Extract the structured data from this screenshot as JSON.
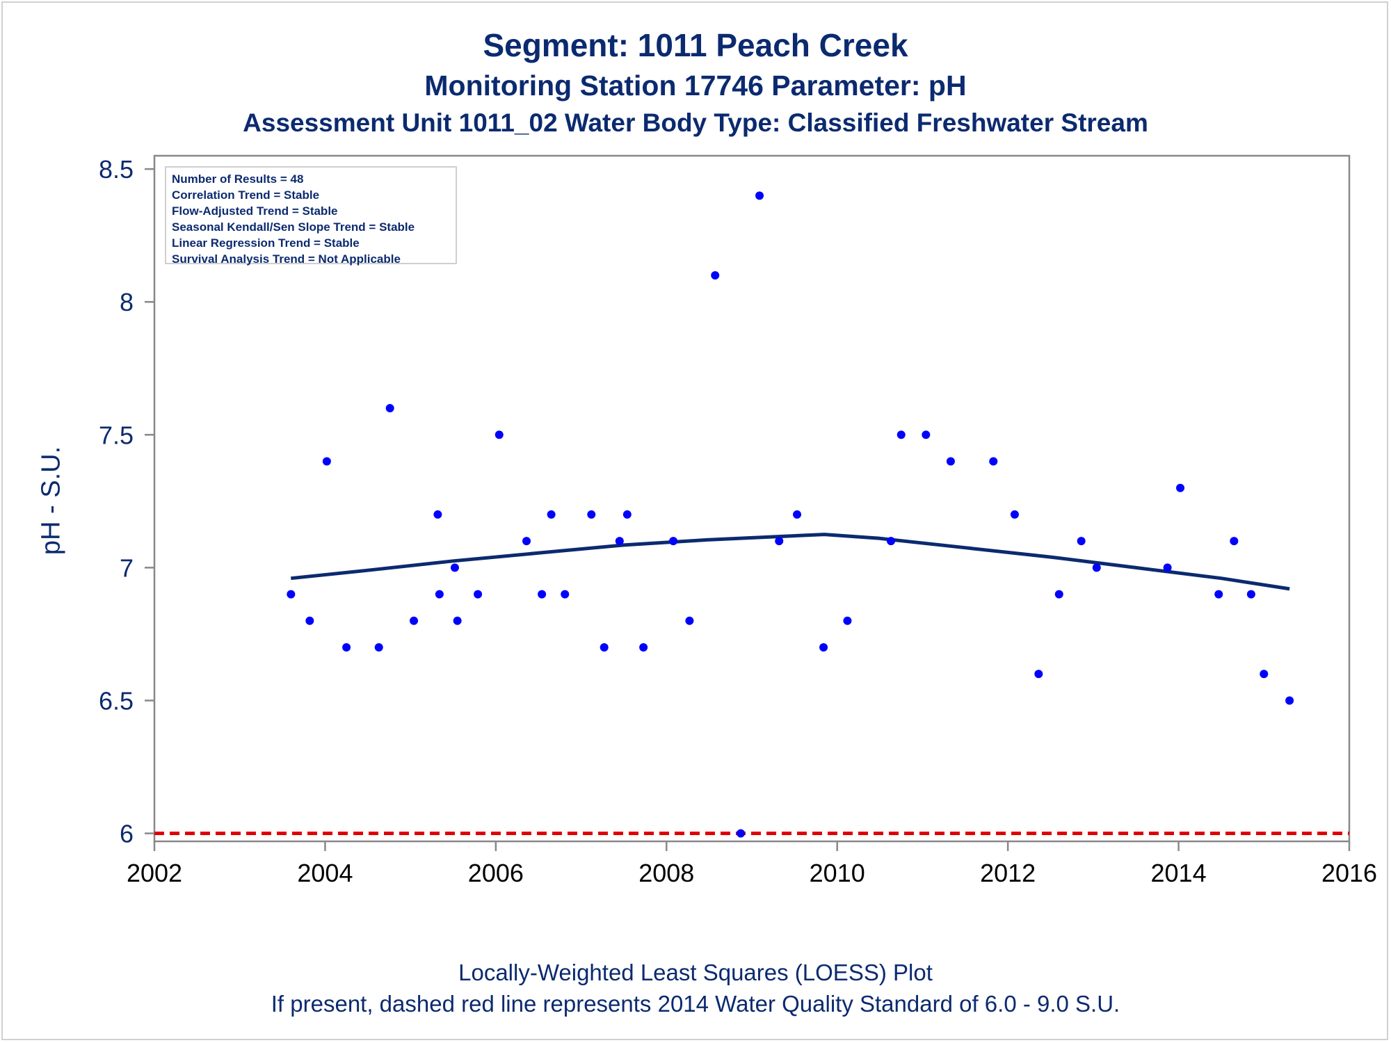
{
  "titles": {
    "line1": "Segment: 1011  Peach Creek",
    "line2": "Monitoring Station 17746 Parameter: pH",
    "line3": "Assessment Unit 1011_02   Water Body Type: Classified Freshwater Stream"
  },
  "footer": {
    "line1": "Locally-Weighted Least Squares (LOESS) Plot",
    "line2": "If present, dashed red line represents 2014 Water Quality Standard of 6.0 - 9.0 S.U."
  },
  "stats_box": [
    "Number of Results = 48",
    "Correlation Trend = Stable",
    "Flow-Adjusted Trend = Stable",
    "Seasonal Kendall/Sen Slope Trend = Stable",
    "Linear Regression Trend = Stable",
    "Survival Analysis Trend = Not Applicable"
  ],
  "colors": {
    "text": "#0b2a6f",
    "points": "#0000ff",
    "loess": "#0b2a6f",
    "standard": "#e00000",
    "frame": "#888888",
    "tick_text_x": "#000000"
  },
  "chart_data": {
    "type": "scatter",
    "ylabel": "pH - S.U.",
    "xlabel": "",
    "xlim": [
      2002,
      2016
    ],
    "ylim": [
      5.97,
      8.55
    ],
    "x_ticks": [
      2002,
      2004,
      2006,
      2008,
      2010,
      2012,
      2014,
      2016
    ],
    "y_ticks": [
      6,
      6.5,
      7,
      7.5,
      8,
      8.5
    ],
    "x_tick_labels": [
      "2002",
      "2004",
      "2006",
      "2008",
      "2010",
      "2012",
      "2014",
      "2016"
    ],
    "y_tick_labels": [
      "6",
      "6.5",
      "7",
      "7.5",
      "8",
      "8.5"
    ],
    "grid": false,
    "legend": "none",
    "points": [
      {
        "x": 2003.6,
        "y": 6.9
      },
      {
        "x": 2003.82,
        "y": 6.8
      },
      {
        "x": 2004.02,
        "y": 7.4
      },
      {
        "x": 2004.25,
        "y": 6.7
      },
      {
        "x": 2004.63,
        "y": 6.7
      },
      {
        "x": 2004.76,
        "y": 7.6
      },
      {
        "x": 2005.04,
        "y": 6.8
      },
      {
        "x": 2005.32,
        "y": 7.2
      },
      {
        "x": 2005.34,
        "y": 6.9
      },
      {
        "x": 2005.52,
        "y": 7.0
      },
      {
        "x": 2005.55,
        "y": 6.8
      },
      {
        "x": 2005.79,
        "y": 6.9
      },
      {
        "x": 2006.04,
        "y": 7.5
      },
      {
        "x": 2006.36,
        "y": 7.1
      },
      {
        "x": 2006.54,
        "y": 6.9
      },
      {
        "x": 2006.65,
        "y": 7.2
      },
      {
        "x": 2006.81,
        "y": 6.9
      },
      {
        "x": 2007.12,
        "y": 7.2
      },
      {
        "x": 2007.27,
        "y": 6.7
      },
      {
        "x": 2007.45,
        "y": 7.1
      },
      {
        "x": 2007.54,
        "y": 7.2
      },
      {
        "x": 2007.73,
        "y": 6.7
      },
      {
        "x": 2008.08,
        "y": 7.1
      },
      {
        "x": 2008.27,
        "y": 6.8
      },
      {
        "x": 2008.57,
        "y": 8.1
      },
      {
        "x": 2008.87,
        "y": 6.0
      },
      {
        "x": 2009.09,
        "y": 8.4
      },
      {
        "x": 2009.32,
        "y": 7.1
      },
      {
        "x": 2009.53,
        "y": 7.2
      },
      {
        "x": 2009.84,
        "y": 6.7
      },
      {
        "x": 2010.12,
        "y": 6.8
      },
      {
        "x": 2010.63,
        "y": 7.1
      },
      {
        "x": 2010.75,
        "y": 7.5
      },
      {
        "x": 2011.04,
        "y": 7.5
      },
      {
        "x": 2011.33,
        "y": 7.4
      },
      {
        "x": 2011.83,
        "y": 7.4
      },
      {
        "x": 2012.08,
        "y": 7.2
      },
      {
        "x": 2012.36,
        "y": 6.6
      },
      {
        "x": 2012.6,
        "y": 6.9
      },
      {
        "x": 2012.86,
        "y": 7.1
      },
      {
        "x": 2013.04,
        "y": 7.0
      },
      {
        "x": 2013.87,
        "y": 7.0
      },
      {
        "x": 2014.02,
        "y": 7.3
      },
      {
        "x": 2014.47,
        "y": 6.9
      },
      {
        "x": 2014.65,
        "y": 7.1
      },
      {
        "x": 2014.85,
        "y": 6.9
      },
      {
        "x": 2015.0,
        "y": 6.6
      },
      {
        "x": 2015.3,
        "y": 6.5
      }
    ],
    "loess_line": [
      {
        "x": 2003.6,
        "y": 6.96
      },
      {
        "x": 2004.5,
        "y": 6.99
      },
      {
        "x": 2005.5,
        "y": 7.025
      },
      {
        "x": 2006.5,
        "y": 7.055
      },
      {
        "x": 2007.5,
        "y": 7.085
      },
      {
        "x": 2008.5,
        "y": 7.105
      },
      {
        "x": 2009.85,
        "y": 7.125
      },
      {
        "x": 2010.5,
        "y": 7.11
      },
      {
        "x": 2011.5,
        "y": 7.075
      },
      {
        "x": 2012.5,
        "y": 7.04
      },
      {
        "x": 2013.5,
        "y": 7.0
      },
      {
        "x": 2014.5,
        "y": 6.96
      },
      {
        "x": 2015.3,
        "y": 6.92
      }
    ],
    "reference_line": {
      "y": 6.0,
      "style": "dashed"
    }
  }
}
